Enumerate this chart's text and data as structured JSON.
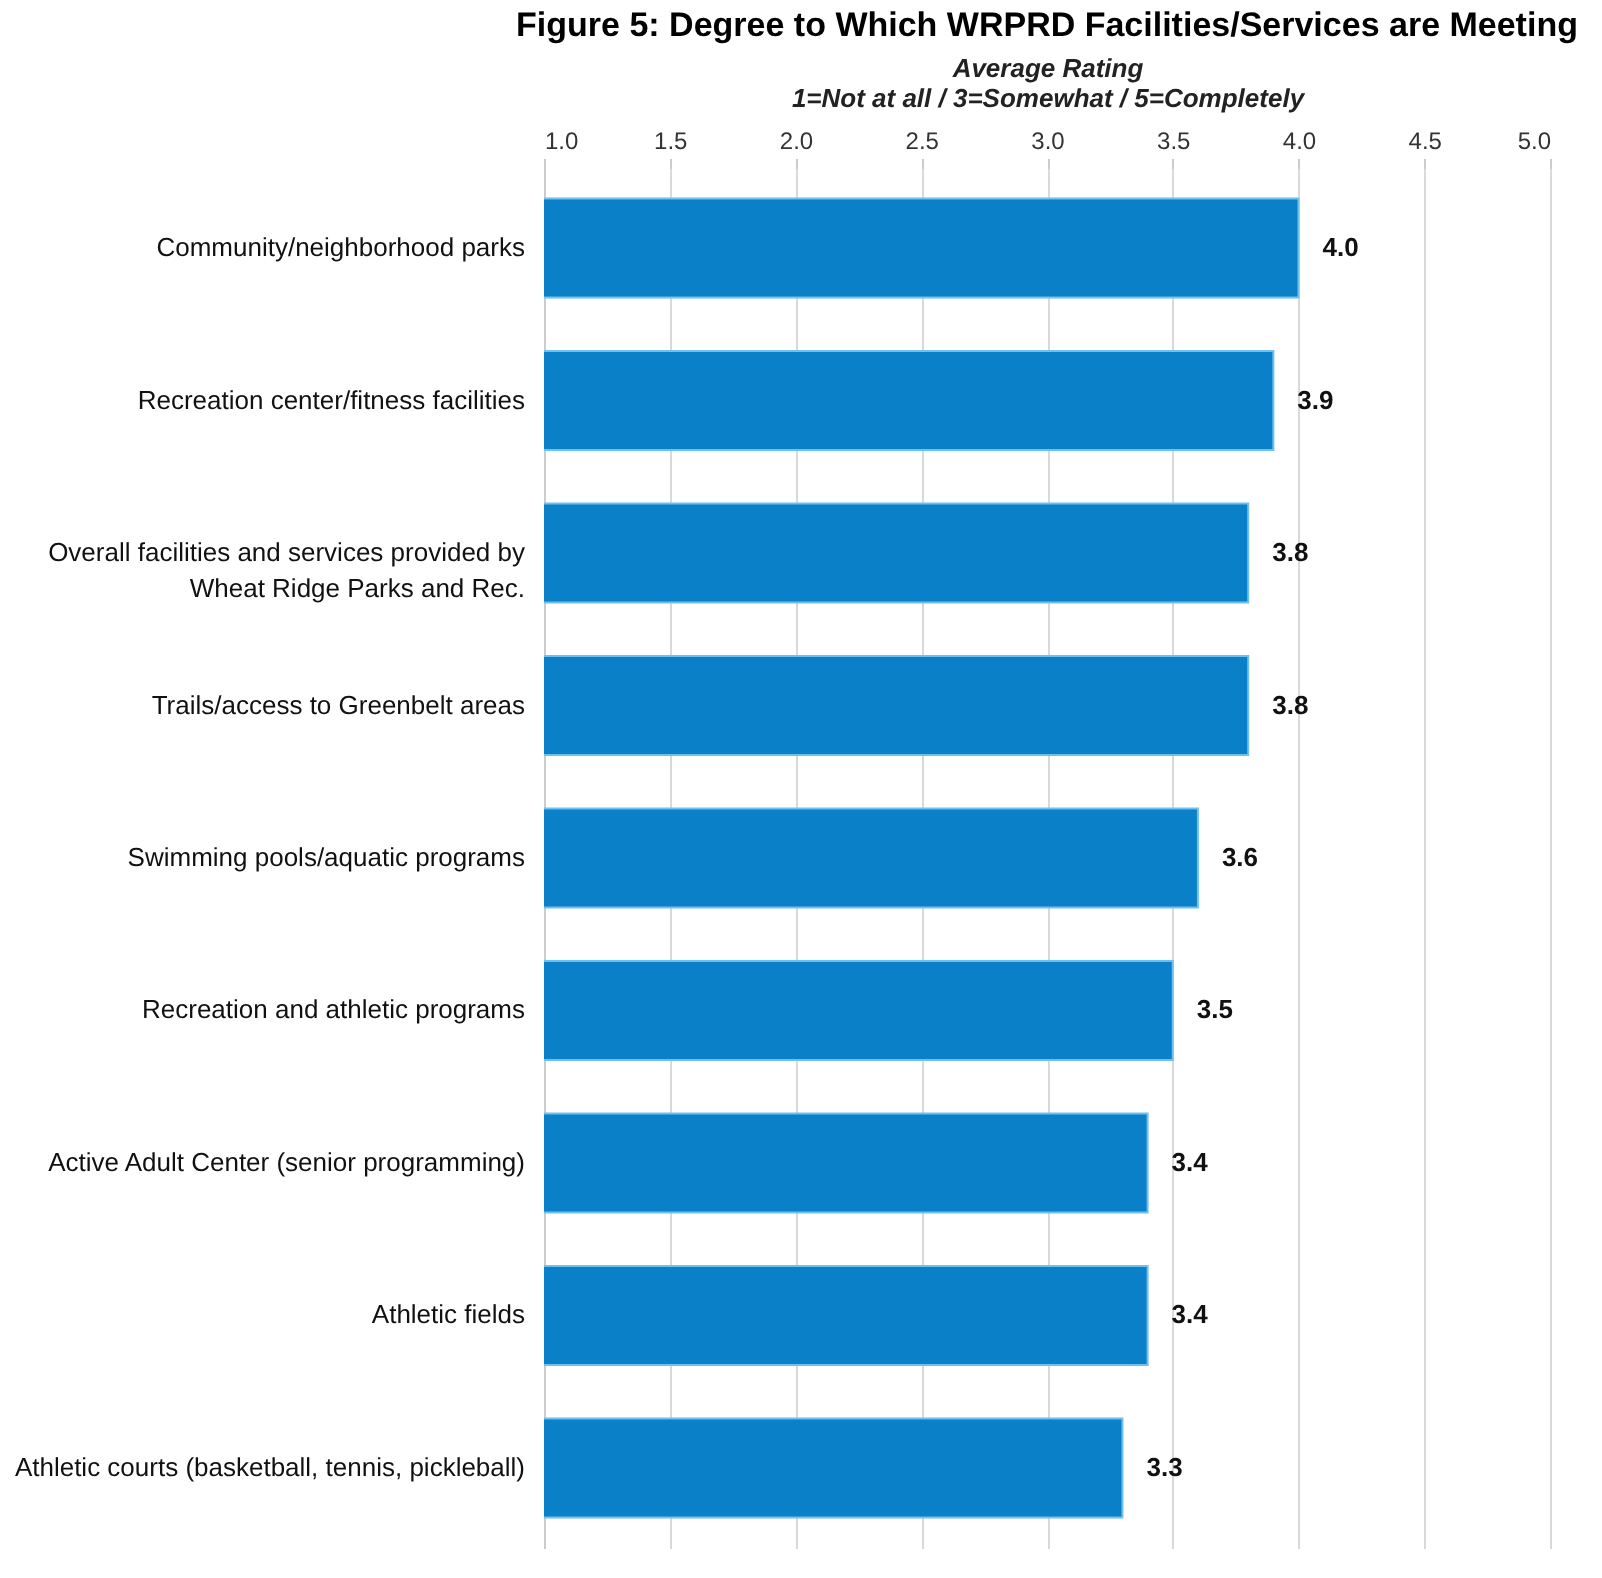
{
  "chart_data": {
    "type": "bar",
    "orientation": "horizontal",
    "title": "Figure 5: Degree to Which WRPRD Facilities/Services are Meeting",
    "xlabel": "Average Rating\n1=Not at all / 3=Somewhat / 5=Completely",
    "categories": [
      "Community/neighborhood parks",
      "Recreation center/fitness facilities",
      "Overall facilities and services provided by\nWheat Ridge Parks and Rec.",
      "Trails/access to Greenbelt areas",
      "Swimming pools/aquatic programs",
      "Recreation and athletic programs",
      "Active Adult Center (senior programming)",
      "Athletic fields",
      "Athletic courts (basketball, tennis, pickleball)"
    ],
    "values": [
      4.0,
      3.9,
      3.8,
      3.8,
      3.6,
      3.5,
      3.4,
      3.4,
      3.3
    ],
    "color": "#0a80c8",
    "value_labels": [
      "4.0",
      "3.9",
      "3.8",
      "3.8",
      "3.6",
      "3.5",
      "3.4",
      "3.4",
      "3.3"
    ],
    "grid": "x",
    "xlim": [
      1,
      5
    ],
    "xticks": [
      {
        "value": 1,
        "label": "1.0"
      },
      {
        "value": 1.5,
        "label": "1.5"
      },
      {
        "value": 2,
        "label": "2.0"
      },
      {
        "value": 2.5,
        "label": "2.5"
      },
      {
        "value": 3,
        "label": "3.0"
      },
      {
        "value": 3.5,
        "label": "3.5"
      },
      {
        "value": 4,
        "label": "4.0"
      },
      {
        "value": 4.5,
        "label": "4.5"
      },
      {
        "value": 5,
        "label": "5.0"
      }
    ]
  }
}
